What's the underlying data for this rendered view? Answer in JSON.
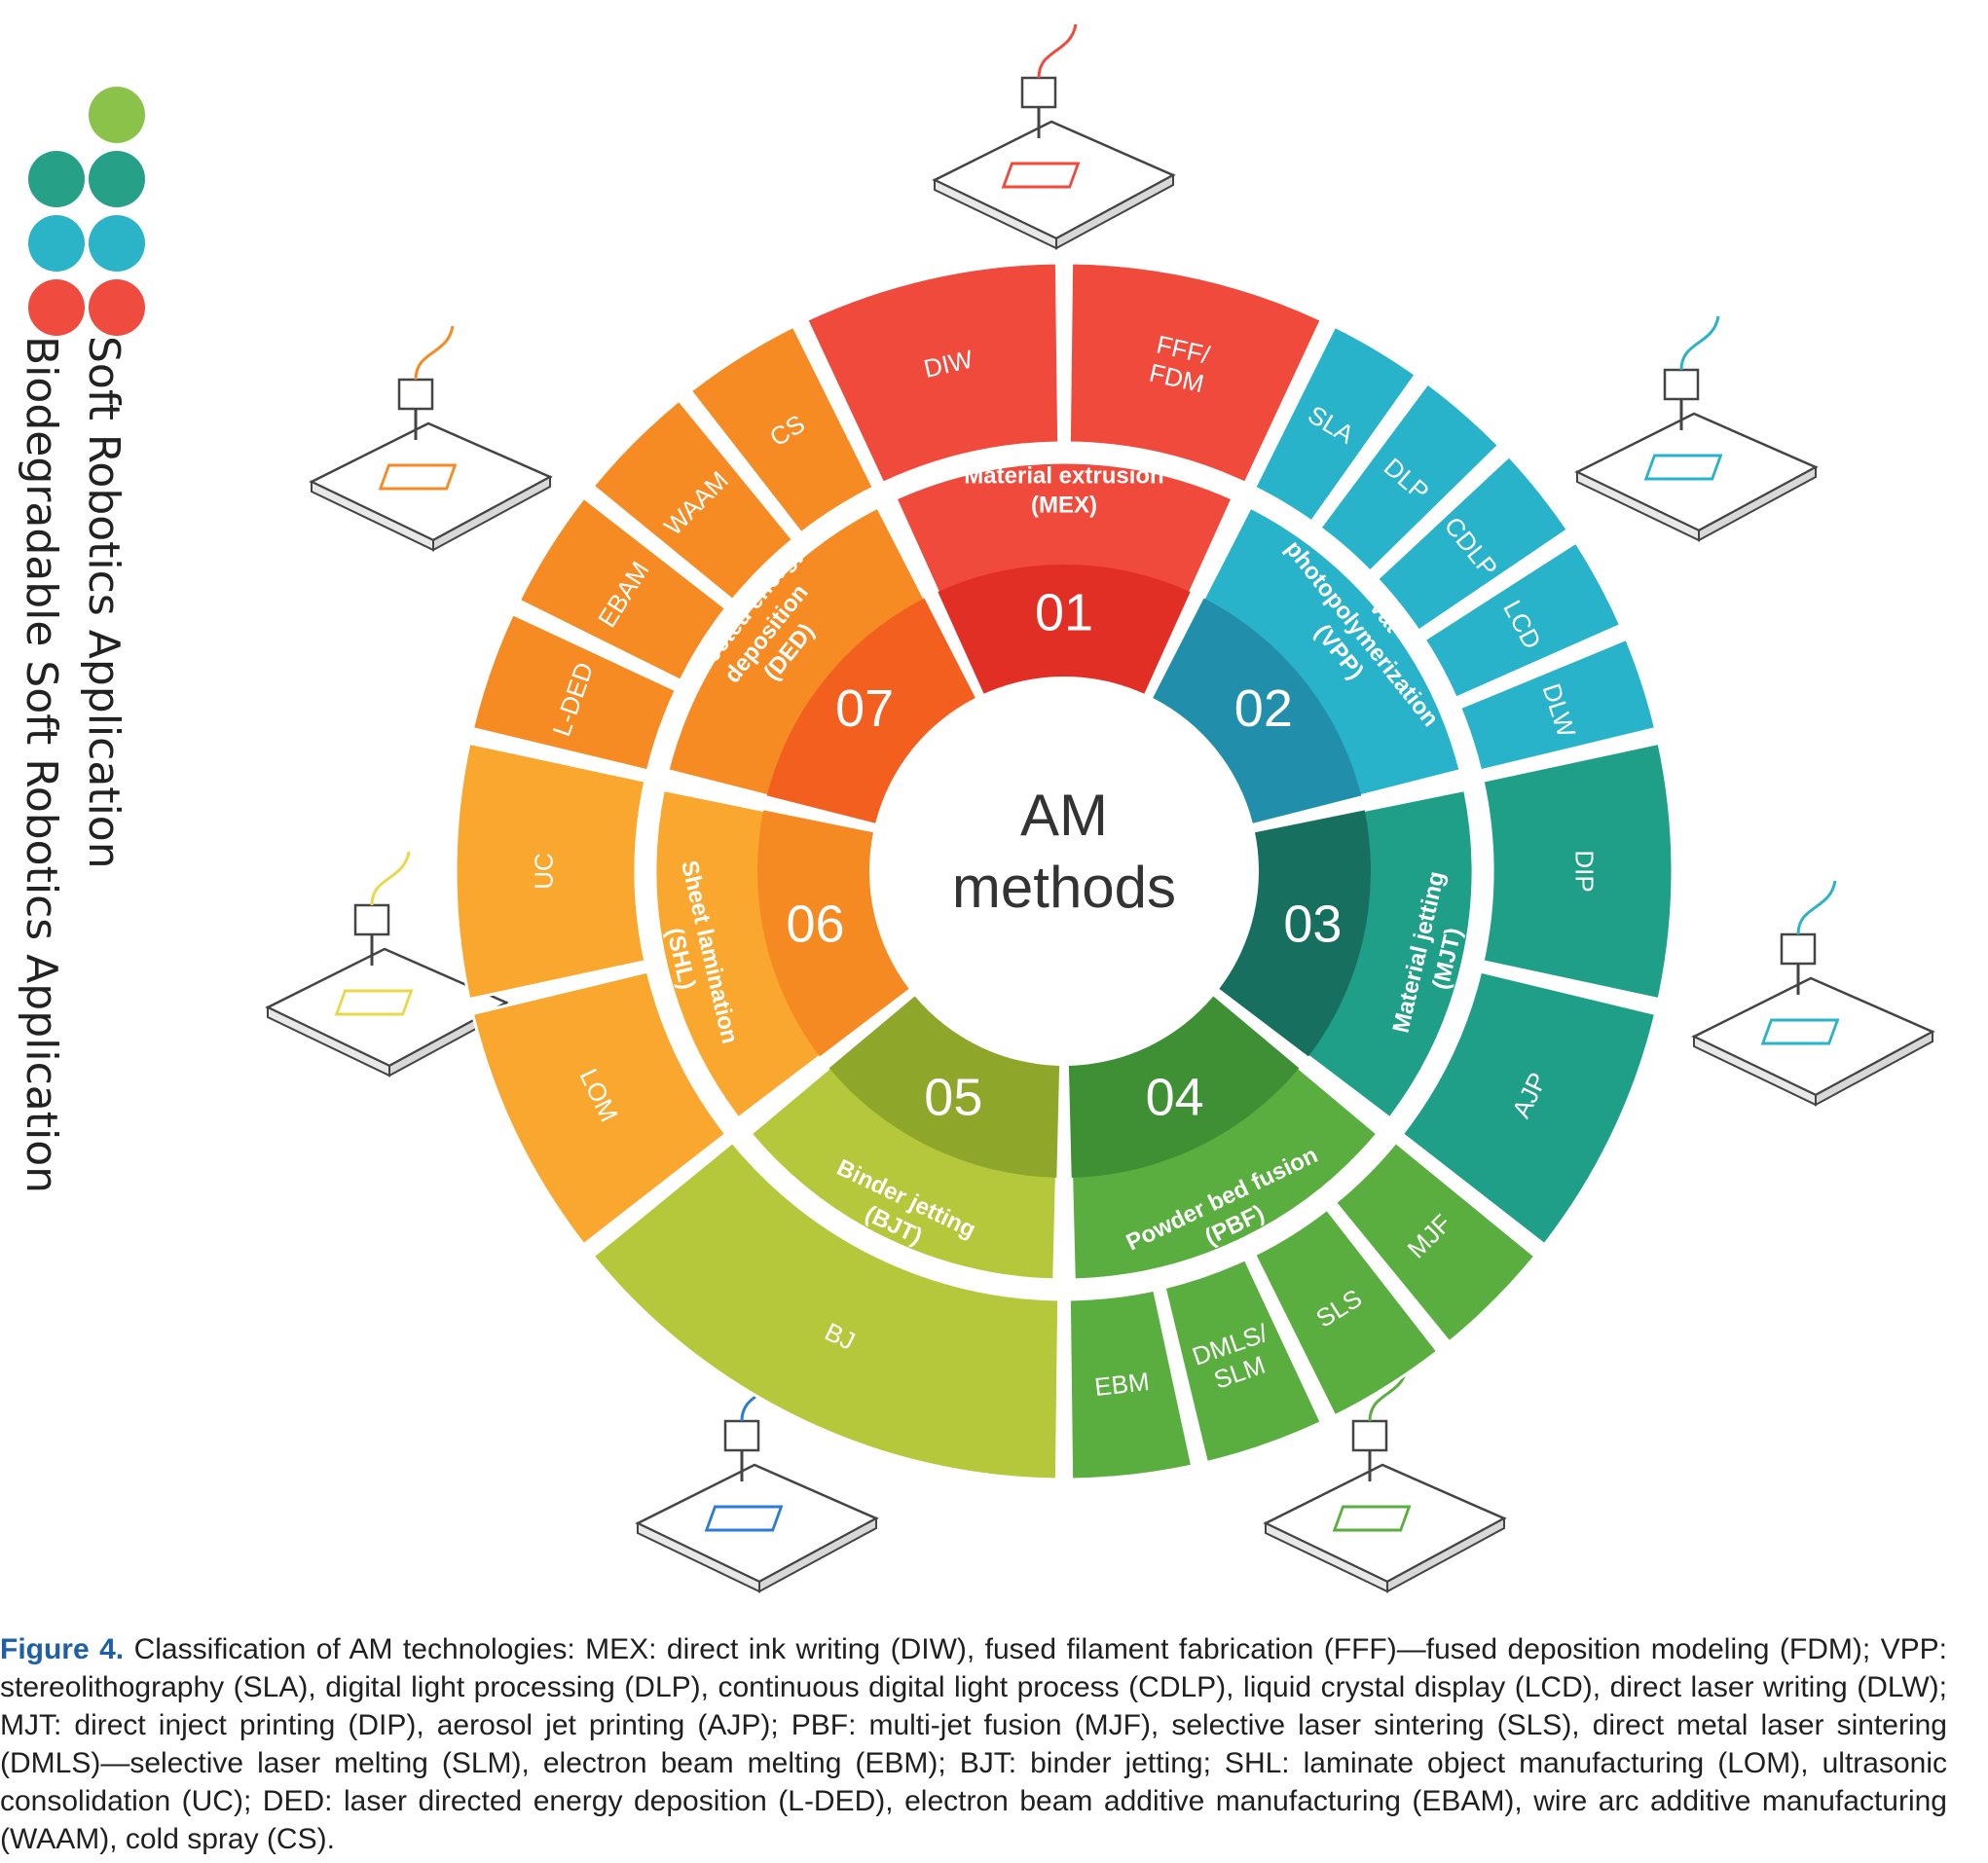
{
  "legend": {
    "soft_label": "Soft Robotics Application",
    "bio_label": "Biodegradable Soft Robotics Application",
    "dot_colors": [
      "#8bc34a",
      "#26a087",
      "#2bb3c7",
      "#ef4b3f"
    ]
  },
  "center": {
    "line1": "AM",
    "line2": "methods"
  },
  "categories": [
    {
      "number": "01",
      "name_lines": [
        "Material extrusion",
        "(MEX)"
      ],
      "color": "#ef4a3c",
      "dark_color": "#e22f25",
      "methods": [
        "DIW",
        "FFF/\nFDM"
      ],
      "bio": [
        true,
        true
      ]
    },
    {
      "number": "02",
      "name_lines": [
        "Vat",
        "photopolymerization",
        "(VPP)"
      ],
      "color": "#29b3cb",
      "dark_color": "#218fab",
      "methods": [
        "SLA",
        "DLP",
        "CDLP",
        "LCD",
        "DLW"
      ],
      "bio": [
        false,
        false,
        false,
        false,
        false
      ]
    },
    {
      "number": "03",
      "name_lines": [
        "Material jetting",
        "(MJT)"
      ],
      "color": "#1f9f88",
      "dark_color": "#17705f",
      "methods": [
        "DIP",
        "AJP"
      ],
      "bio": [
        false,
        false
      ]
    },
    {
      "number": "04",
      "name_lines": [
        "Powder bed fusion",
        "(PBF)"
      ],
      "color": "#5aae3f",
      "dark_color": "#3f8f35",
      "methods": [
        "MJF",
        "SLS",
        "DMLS/\nSLM",
        "EBM"
      ],
      "bio": [
        false,
        false,
        false,
        false
      ]
    },
    {
      "number": "05",
      "name_lines": [
        "Binder jetting",
        "(BJT)"
      ],
      "color": "#b5c73a",
      "dark_color": "#8ea62a",
      "methods": [
        "BJ"
      ],
      "bio": [
        false
      ]
    },
    {
      "number": "06",
      "name_lines": [
        "Sheet lamination",
        "(SHL)"
      ],
      "color": "#f9a72e",
      "dark_color": "#f58a23",
      "methods": [
        "LOM",
        "UC"
      ],
      "bio": [
        false,
        false
      ]
    },
    {
      "number": "07",
      "name_lines": [
        "Directed energy",
        "deposition",
        "(DED)"
      ],
      "color": "#f68b24",
      "dark_color": "#f25f1e",
      "methods": [
        "L-DED",
        "EBAM",
        "WAAM",
        "CS"
      ],
      "bio": [
        false,
        false,
        false,
        false
      ]
    }
  ],
  "illustration_colors": [
    "#ef4a3c",
    "#29b3cb",
    "#2bb3c7",
    "#5aae3f",
    "#2e7bd6",
    "#e8d84a",
    "#f68b24"
  ],
  "caption": {
    "label": "Figure 4.",
    "text": "Classification of AM technologies: MEX: direct ink writing (DIW), fused filament fabrication (FFF)—fused deposition modeling (FDM); VPP: stereolithography (SLA), digital light processing (DLP), continuous digital light process (CDLP), liquid crystal display (LCD), direct laser writing (DLW); MJT: direct inject printing (DIP), aerosol jet printing (AJP); PBF: multi-jet fusion (MJF), selective laser sintering (SLS), direct metal laser sintering (DMLS)—selective laser melting (SLM), electron beam melting (EBM); BJT: binder jetting; SHL: laminate object manufacturing (LOM), ultrasonic consolidation (UC); DED: laser directed energy deposition (L-DED), electron beam additive manufacturing (EBAM), wire arc additive manufacturing (WAAM), cold spray (CS)."
  }
}
